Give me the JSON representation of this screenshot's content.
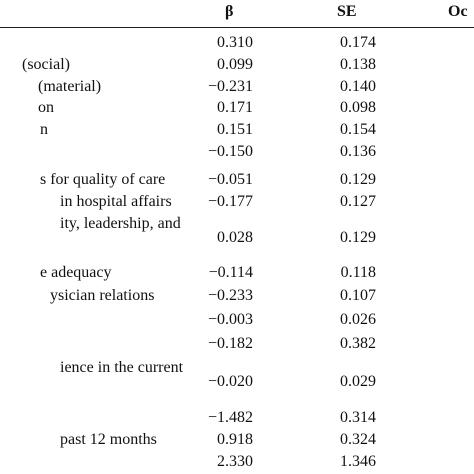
{
  "header": {
    "beta": "β",
    "se": "SE",
    "other": "Oc"
  },
  "table": {
    "rows": [
      {
        "beta": "0.310",
        "se": "0.174"
      },
      {
        "label": "(social)",
        "beta": "0.099",
        "se": "0.138"
      },
      {
        "label": "(material)",
        "beta": "−0.231",
        "se": "0.140"
      },
      {
        "label": "on",
        "beta": "0.171",
        "se": "0.098"
      },
      {
        "label": "n",
        "beta": "0.151",
        "se": "0.154"
      },
      {
        "beta": "−0.150",
        "se": "0.136"
      },
      {
        "label": "s for quality of care",
        "beta": "−0.051",
        "se": "0.129"
      },
      {
        "label": "in hospital affairs",
        "beta": "−0.177",
        "se": "0.127"
      },
      {
        "label": "ity, leadership, and",
        "beta": "0.028",
        "se": "0.129"
      },
      {
        "label": "e adequacy",
        "beta": "−0.114",
        "se": "0.118"
      },
      {
        "label": "ysician relations",
        "beta": "−0.233",
        "se": "0.107"
      },
      {
        "beta": "−0.003",
        "se": "0.026"
      },
      {
        "beta": "−0.182",
        "se": "0.382"
      },
      {
        "label": "ience in the current",
        "beta": "−0.020",
        "se": "0.029"
      },
      {
        "beta": "−1.482",
        "se": "0.314"
      },
      {
        "label": "past 12 months",
        "beta": "0.918",
        "se": "0.324"
      },
      {
        "beta": "2.330",
        "se": "1.346"
      }
    ]
  }
}
